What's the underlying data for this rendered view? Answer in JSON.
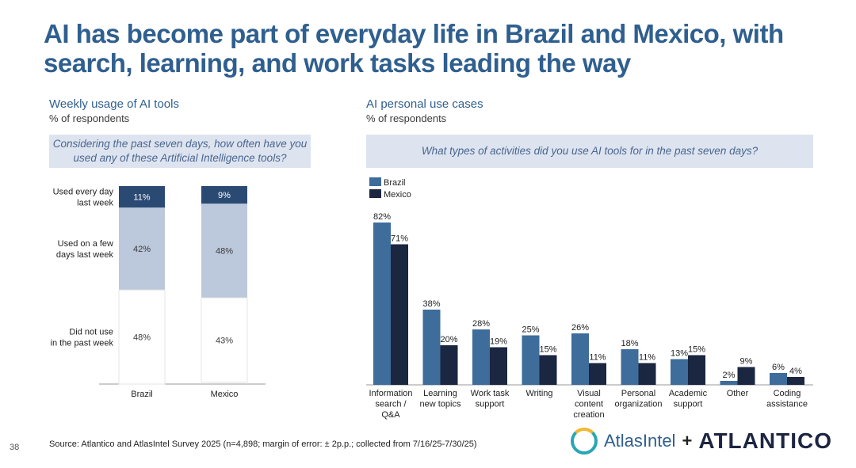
{
  "title": "AI has become part of everyday life in Brazil and Mexico, with search, learning, and work tasks leading the way",
  "left_panel": {
    "heading": "Weekly usage of AI tools",
    "subheading": "% of respondents",
    "question": "Considering the past seven days, how often have you used any of these Artificial Intelligence tools?"
  },
  "right_panel": {
    "heading": "AI personal use cases",
    "subheading": "% of respondents",
    "question": "What types of activities did you use AI tools for in the past seven days?"
  },
  "footer": {
    "page_number": "38",
    "source": "Source: Atlantico and AtlasIntel Survey 2025 (n=4,898; margin of error: ± 2p.p.; collected from 7/16/25-7/30/25)",
    "logo_atlasintel": "AtlasIntel",
    "logo_plus": "+",
    "logo_atlantico": "ATLANTICO"
  },
  "colors": {
    "brazil": "#3e6c9b",
    "mexico": "#1b2640",
    "stack_top": "#2b4a73",
    "stack_mid": "#bcc8db",
    "stack_bottom": "#ffffff"
  },
  "chart_data": [
    {
      "type": "bar",
      "stacked": true,
      "title": "Weekly usage of AI tools",
      "categories": [
        "Brazil",
        "Mexico"
      ],
      "series": [
        {
          "name": "Used every day last week",
          "values": [
            11,
            9
          ]
        },
        {
          "name": "Used on a few days last week",
          "values": [
            42,
            48
          ]
        },
        {
          "name": "Did not use in the past week",
          "values": [
            48,
            43
          ]
        }
      ],
      "series_label_lines": [
        [
          "Used every day",
          "last week"
        ],
        [
          "Used on a few",
          "days last week"
        ],
        [
          "Did not use",
          "in the past week"
        ]
      ],
      "value_labels": [
        [
          "11%",
          "9%"
        ],
        [
          "42%",
          "48%"
        ],
        [
          "48%",
          "43%"
        ]
      ],
      "ylim": [
        0,
        101
      ]
    },
    {
      "type": "bar",
      "title": "AI personal use cases",
      "categories": [
        "Information search / Q&A",
        "Learning new topics",
        "Work task support",
        "Writing",
        "Visual content creation",
        "Personal organization",
        "Academic support",
        "Other",
        "Coding assistance"
      ],
      "category_label_lines": [
        [
          "Information",
          "search /",
          "Q&A"
        ],
        [
          "Learning",
          "new topics"
        ],
        [
          "Work task",
          "support"
        ],
        [
          "Writing"
        ],
        [
          "Visual",
          "content",
          "creation"
        ],
        [
          "Personal",
          "organization"
        ],
        [
          "Academic",
          "support"
        ],
        [
          "Other"
        ],
        [
          "Coding",
          "assistance"
        ]
      ],
      "series": [
        {
          "name": "Brazil",
          "values": [
            82,
            38,
            28,
            25,
            26,
            18,
            13,
            2,
            6
          ]
        },
        {
          "name": "Mexico",
          "values": [
            71,
            20,
            19,
            15,
            11,
            11,
            15,
            9,
            4
          ]
        }
      ],
      "legend": "top-left",
      "ylim": [
        0,
        82
      ]
    }
  ]
}
